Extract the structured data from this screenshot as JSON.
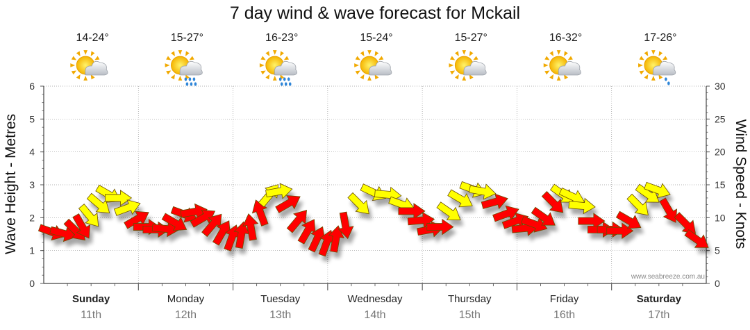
{
  "chart_data": {
    "type": "line",
    "title": "7 day wind & wave forecast for Mckail",
    "ylabel_left": "Wave Height - Metres",
    "ylabel_right": "Wind Speed - Knots",
    "ylim_left": [
      0,
      6
    ],
    "ylim_right": [
      0,
      30
    ],
    "yticks_left": [
      "0",
      "1",
      "2",
      "3",
      "4",
      "5",
      "6"
    ],
    "yticks_right": [
      "0",
      "5",
      "10",
      "15",
      "20",
      "25",
      "30"
    ],
    "grid": true,
    "credit": "www.seabreeze.com.au",
    "days": [
      {
        "day": "Sunday",
        "date": "11th",
        "temp": "14-24°",
        "icon": "sun-cloud-icon",
        "bold": true
      },
      {
        "day": "Monday",
        "date": "12th",
        "temp": "15-27°",
        "icon": "sun-cloud-rain-icon",
        "bold": false
      },
      {
        "day": "Tuesday",
        "date": "13th",
        "temp": "16-23°",
        "icon": "sun-cloud-rain-icon",
        "bold": false
      },
      {
        "day": "Wednesday",
        "date": "14th",
        "temp": "15-24°",
        "icon": "sun-cloud-icon",
        "bold": false
      },
      {
        "day": "Thursday",
        "date": "15th",
        "temp": "15-27°",
        "icon": "sun-cloud-icon",
        "bold": false
      },
      {
        "day": "Friday",
        "date": "16th",
        "temp": "16-32°",
        "icon": "sun-cloud-icon",
        "bold": false
      },
      {
        "day": "Saturday",
        "date": "17th",
        "temp": "17-26°",
        "icon": "sun-cloud-light-rain-icon",
        "bold": true
      }
    ],
    "wind_colors": {
      "strong": "#ff0000",
      "light": "#ffff00"
    },
    "series": [
      {
        "values": [
          {
            "day_offset": 0.0,
            "knots": 7.8,
            "color": "strong",
            "dir": 200
          },
          {
            "day_offset": 0.12,
            "knots": 7.6,
            "color": "strong",
            "dir": 195
          },
          {
            "day_offset": 0.25,
            "knots": 8.0,
            "color": "strong",
            "dir": 225
          },
          {
            "day_offset": 0.32,
            "knots": 8.6,
            "color": "strong",
            "dir": 240
          },
          {
            "day_offset": 0.4,
            "knots": 10.2,
            "color": "light",
            "dir": 230
          },
          {
            "day_offset": 0.5,
            "knots": 12.0,
            "color": "light",
            "dir": 220
          },
          {
            "day_offset": 0.6,
            "knots": 13.5,
            "color": "light",
            "dir": 210
          },
          {
            "day_offset": 0.7,
            "knots": 13.0,
            "color": "light",
            "dir": 180
          },
          {
            "day_offset": 0.8,
            "knots": 11.5,
            "color": "light",
            "dir": 160
          },
          {
            "day_offset": 0.9,
            "knots": 9.8,
            "color": "strong",
            "dir": 150
          },
          {
            "day_offset": 1.0,
            "knots": 8.6,
            "color": "strong",
            "dir": 180
          },
          {
            "day_offset": 1.1,
            "knots": 8.2,
            "color": "strong",
            "dir": 180
          },
          {
            "day_offset": 1.2,
            "knots": 8.3,
            "color": "strong",
            "dir": 185
          },
          {
            "day_offset": 1.3,
            "knots": 9.2,
            "color": "strong",
            "dir": 210
          },
          {
            "day_offset": 1.4,
            "knots": 10.5,
            "color": "strong",
            "dir": 200
          },
          {
            "day_offset": 1.5,
            "knots": 10.9,
            "color": "strong",
            "dir": 170
          },
          {
            "day_offset": 1.6,
            "knots": 10.0,
            "color": "strong",
            "dir": 150
          },
          {
            "day_offset": 1.7,
            "knots": 9.0,
            "color": "strong",
            "dir": 130
          },
          {
            "day_offset": 1.8,
            "knots": 7.8,
            "color": "strong",
            "dir": 120
          },
          {
            "day_offset": 1.9,
            "knots": 7.0,
            "color": "strong",
            "dir": 110
          },
          {
            "day_offset": 2.0,
            "knots": 7.4,
            "color": "strong",
            "dir": 100
          },
          {
            "day_offset": 2.1,
            "knots": 8.6,
            "color": "strong",
            "dir": 80
          },
          {
            "day_offset": 2.2,
            "knots": 10.8,
            "color": "strong",
            "dir": 70
          },
          {
            "day_offset": 2.3,
            "knots": 13.5,
            "color": "light",
            "dir": 130
          },
          {
            "day_offset": 2.4,
            "knots": 14.0,
            "color": "light",
            "dir": 170
          },
          {
            "day_offset": 2.5,
            "knots": 12.2,
            "color": "strong",
            "dir": 150
          },
          {
            "day_offset": 2.6,
            "knots": 9.6,
            "color": "strong",
            "dir": 130
          },
          {
            "day_offset": 2.7,
            "knots": 8.0,
            "color": "strong",
            "dir": 120
          },
          {
            "day_offset": 2.8,
            "knots": 6.8,
            "color": "strong",
            "dir": 115
          },
          {
            "day_offset": 2.9,
            "knots": 6.2,
            "color": "strong",
            "dir": 110
          },
          {
            "day_offset": 3.0,
            "knots": 6.8,
            "color": "strong",
            "dir": 100
          },
          {
            "day_offset": 3.1,
            "knots": 8.8,
            "color": "strong",
            "dir": 260
          },
          {
            "day_offset": 3.25,
            "knots": 12.0,
            "color": "light",
            "dir": 225
          },
          {
            "day_offset": 3.4,
            "knots": 13.8,
            "color": "light",
            "dir": 205
          },
          {
            "day_offset": 3.55,
            "knots": 13.5,
            "color": "light",
            "dir": 185
          },
          {
            "day_offset": 3.7,
            "knots": 12.0,
            "color": "light",
            "dir": 200
          },
          {
            "day_offset": 3.8,
            "knots": 11.0,
            "color": "strong",
            "dir": 180
          },
          {
            "day_offset": 3.9,
            "knots": 9.6,
            "color": "strong",
            "dir": 175
          },
          {
            "day_offset": 4.0,
            "knots": 8.2,
            "color": "strong",
            "dir": 170
          },
          {
            "day_offset": 4.1,
            "knots": 8.6,
            "color": "strong",
            "dir": 180
          },
          {
            "day_offset": 4.2,
            "knots": 10.8,
            "color": "light",
            "dir": 215
          },
          {
            "day_offset": 4.32,
            "knots": 12.8,
            "color": "light",
            "dir": 210
          },
          {
            "day_offset": 4.45,
            "knots": 14.3,
            "color": "light",
            "dir": 200
          },
          {
            "day_offset": 4.55,
            "knots": 14.0,
            "color": "light",
            "dir": 190
          },
          {
            "day_offset": 4.68,
            "knots": 12.4,
            "color": "strong",
            "dir": 165
          },
          {
            "day_offset": 4.8,
            "knots": 10.6,
            "color": "strong",
            "dir": 160
          },
          {
            "day_offset": 4.9,
            "knots": 9.5,
            "color": "strong",
            "dir": 160
          },
          {
            "day_offset": 5.0,
            "knots": 8.4,
            "color": "strong",
            "dir": 175
          },
          {
            "day_offset": 5.1,
            "knots": 9.0,
            "color": "strong",
            "dir": 200
          },
          {
            "day_offset": 5.2,
            "knots": 10.0,
            "color": "strong",
            "dir": 215
          },
          {
            "day_offset": 5.3,
            "knots": 12.2,
            "color": "strong",
            "dir": 225
          },
          {
            "day_offset": 5.4,
            "knots": 13.5,
            "color": "light",
            "dir": 215
          },
          {
            "day_offset": 5.5,
            "knots": 13.2,
            "color": "light",
            "dir": 205
          },
          {
            "day_offset": 5.6,
            "knots": 11.8,
            "color": "light",
            "dir": 185
          },
          {
            "day_offset": 5.7,
            "knots": 9.5,
            "color": "strong",
            "dir": 180
          },
          {
            "day_offset": 5.8,
            "knots": 8.2,
            "color": "strong",
            "dir": 180
          },
          {
            "day_offset": 5.9,
            "knots": 8.2,
            "color": "strong",
            "dir": 180
          },
          {
            "day_offset": 6.0,
            "knots": 8.0,
            "color": "strong",
            "dir": 180
          },
          {
            "day_offset": 6.1,
            "knots": 9.5,
            "color": "strong",
            "dir": 210
          },
          {
            "day_offset": 6.2,
            "knots": 11.8,
            "color": "light",
            "dir": 225
          },
          {
            "day_offset": 6.3,
            "knots": 13.5,
            "color": "light",
            "dir": 215
          },
          {
            "day_offset": 6.4,
            "knots": 14.2,
            "color": "light",
            "dir": 200
          },
          {
            "day_offset": 6.52,
            "knots": 11.0,
            "color": "strong",
            "dir": 240
          },
          {
            "day_offset": 6.7,
            "knots": 9.0,
            "color": "strong",
            "dir": 225
          },
          {
            "day_offset": 6.82,
            "knots": 6.6,
            "color": "strong",
            "dir": 215
          }
        ]
      }
    ]
  }
}
